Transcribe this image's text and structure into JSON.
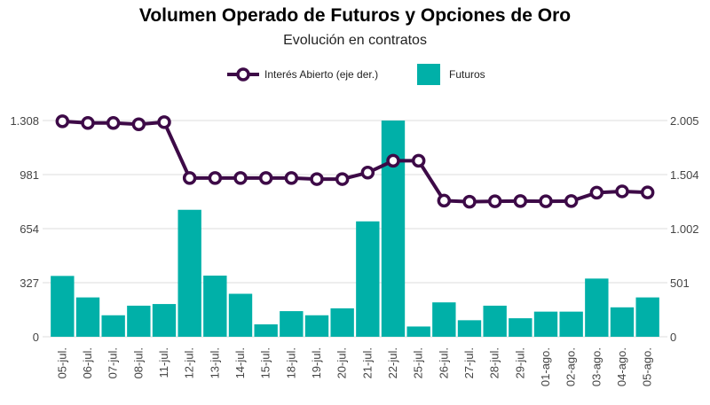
{
  "chart_data": {
    "type": "bar",
    "title": "Volumen Operado de Futuros y Opciones de Oro",
    "subtitle": "Evolución en contratos",
    "categories": [
      "05-jul.",
      "06-jul.",
      "07-jul.",
      "08-jul.",
      "11-jul.",
      "12-jul.",
      "13-jul.",
      "14-jul.",
      "15-jul.",
      "18-jul.",
      "19-jul.",
      "20-jul.",
      "21-jul.",
      "22-jul.",
      "25-jul.",
      "26-jul.",
      "27-jul.",
      "28-jul.",
      "29-jul.",
      "01-ago.",
      "02-ago.",
      "03-ago.",
      "04-ago.",
      "05-ago."
    ],
    "series": [
      {
        "name": "Futuros",
        "type": "bar",
        "axis": "left",
        "color": "#00B0A8",
        "values": [
          368,
          238,
          130,
          188,
          198,
          768,
          370,
          260,
          75,
          155,
          130,
          172,
          698,
          1308,
          62,
          208,
          100,
          188,
          112,
          152,
          152,
          352,
          178,
          238
        ]
      },
      {
        "name": "Interés Abierto (eje der.)",
        "type": "line",
        "axis": "right",
        "color": "#3D0A47",
        "values": [
          1998,
          1982,
          1982,
          1970,
          1990,
          1472,
          1472,
          1472,
          1472,
          1472,
          1462,
          1462,
          1522,
          1632,
          1632,
          1262,
          1252,
          1256,
          1258,
          1256,
          1258,
          1336,
          1348,
          1338
        ]
      }
    ],
    "y_left": {
      "ticks": [
        "0",
        "327",
        "654",
        "981",
        "1.308"
      ],
      "tick_values": [
        0,
        327,
        654,
        981,
        1308
      ],
      "ylim": [
        0,
        1308
      ]
    },
    "y_right": {
      "ticks": [
        "0",
        "501",
        "1.002",
        "1.504",
        "2.005"
      ],
      "tick_values": [
        0,
        501,
        1002,
        1504,
        2005
      ],
      "ylim": [
        0,
        2005
      ]
    },
    "grid": true,
    "legend_position": "top-center"
  }
}
